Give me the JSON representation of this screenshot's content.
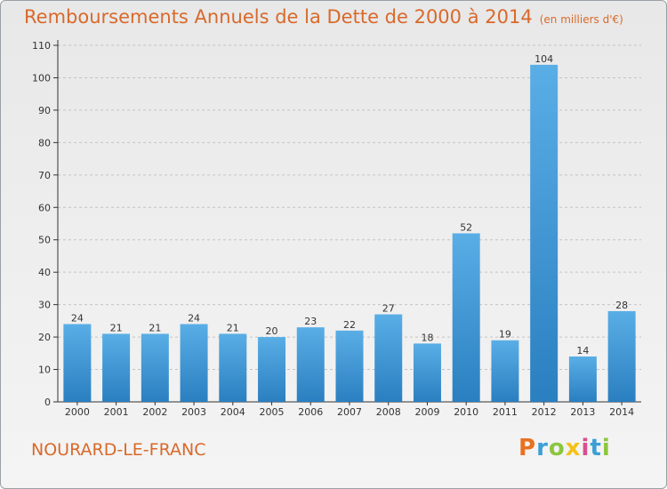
{
  "title": "Remboursements Annuels de la Dette de 2000 à 2014",
  "unit_label": "(en milliers d'€)",
  "commune": "NOURARD-LE-FRANC",
  "logo": {
    "letters": [
      "P",
      "r",
      "o",
      "x",
      "i",
      "t",
      "i"
    ]
  },
  "colors": {
    "bar_light": "#5aaee6",
    "bar_dark": "#2a7fc0",
    "title": "#d9692a",
    "axis": "#333333"
  },
  "chart_data": {
    "type": "bar",
    "categories": [
      "2000",
      "2001",
      "2002",
      "2003",
      "2004",
      "2005",
      "2006",
      "2007",
      "2008",
      "2009",
      "2010",
      "2011",
      "2012",
      "2013",
      "2014"
    ],
    "values": [
      24,
      21,
      21,
      24,
      21,
      20,
      23,
      22,
      27,
      18,
      52,
      19,
      104,
      14,
      28
    ],
    "yticks": [
      0,
      10,
      20,
      30,
      40,
      50,
      60,
      70,
      80,
      90,
      100,
      110
    ],
    "ylim": [
      0,
      110
    ],
    "grid": "horizontal dashed"
  }
}
